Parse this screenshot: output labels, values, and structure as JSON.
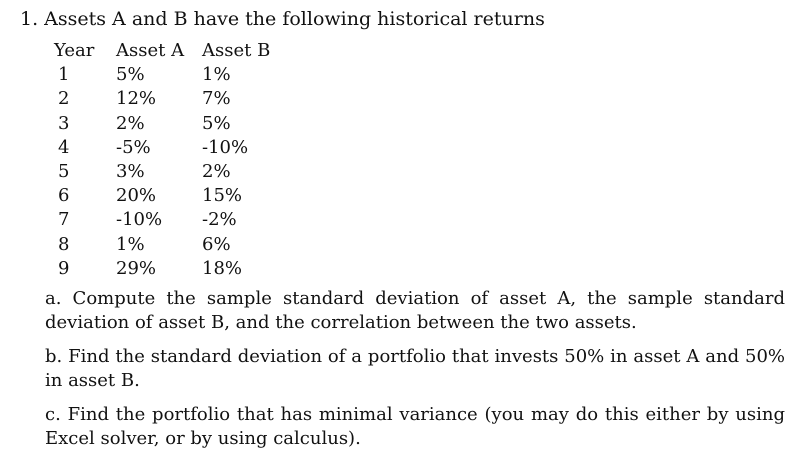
{
  "question": {
    "title": "1. Assets A and B have the following historical returns"
  },
  "table": {
    "headers": [
      "Year",
      "Asset A",
      "Asset B"
    ],
    "rows": [
      [
        "1",
        "5%",
        "1%"
      ],
      [
        "2",
        "12%",
        "7%"
      ],
      [
        "3",
        "2%",
        "5%"
      ],
      [
        "4",
        "-5%",
        "-10%"
      ],
      [
        "5",
        "3%",
        "2%"
      ],
      [
        "6",
        "20%",
        "15%"
      ],
      [
        "7",
        "-10%",
        "-2%"
      ],
      [
        "8",
        "1%",
        "6%"
      ],
      [
        "9",
        "29%",
        "18%"
      ]
    ]
  },
  "parts": {
    "a": "a. Compute the sample standard deviation of asset A, the sample standard deviation of asset B, and the correlation between the two assets.",
    "b": "b. Find the standard deviation of a portfolio that invests 50% in asset A and 50% in asset B.",
    "c": "c. Find the portfolio that has minimal variance (you may do this either by using Excel solver, or by using calculus)."
  }
}
